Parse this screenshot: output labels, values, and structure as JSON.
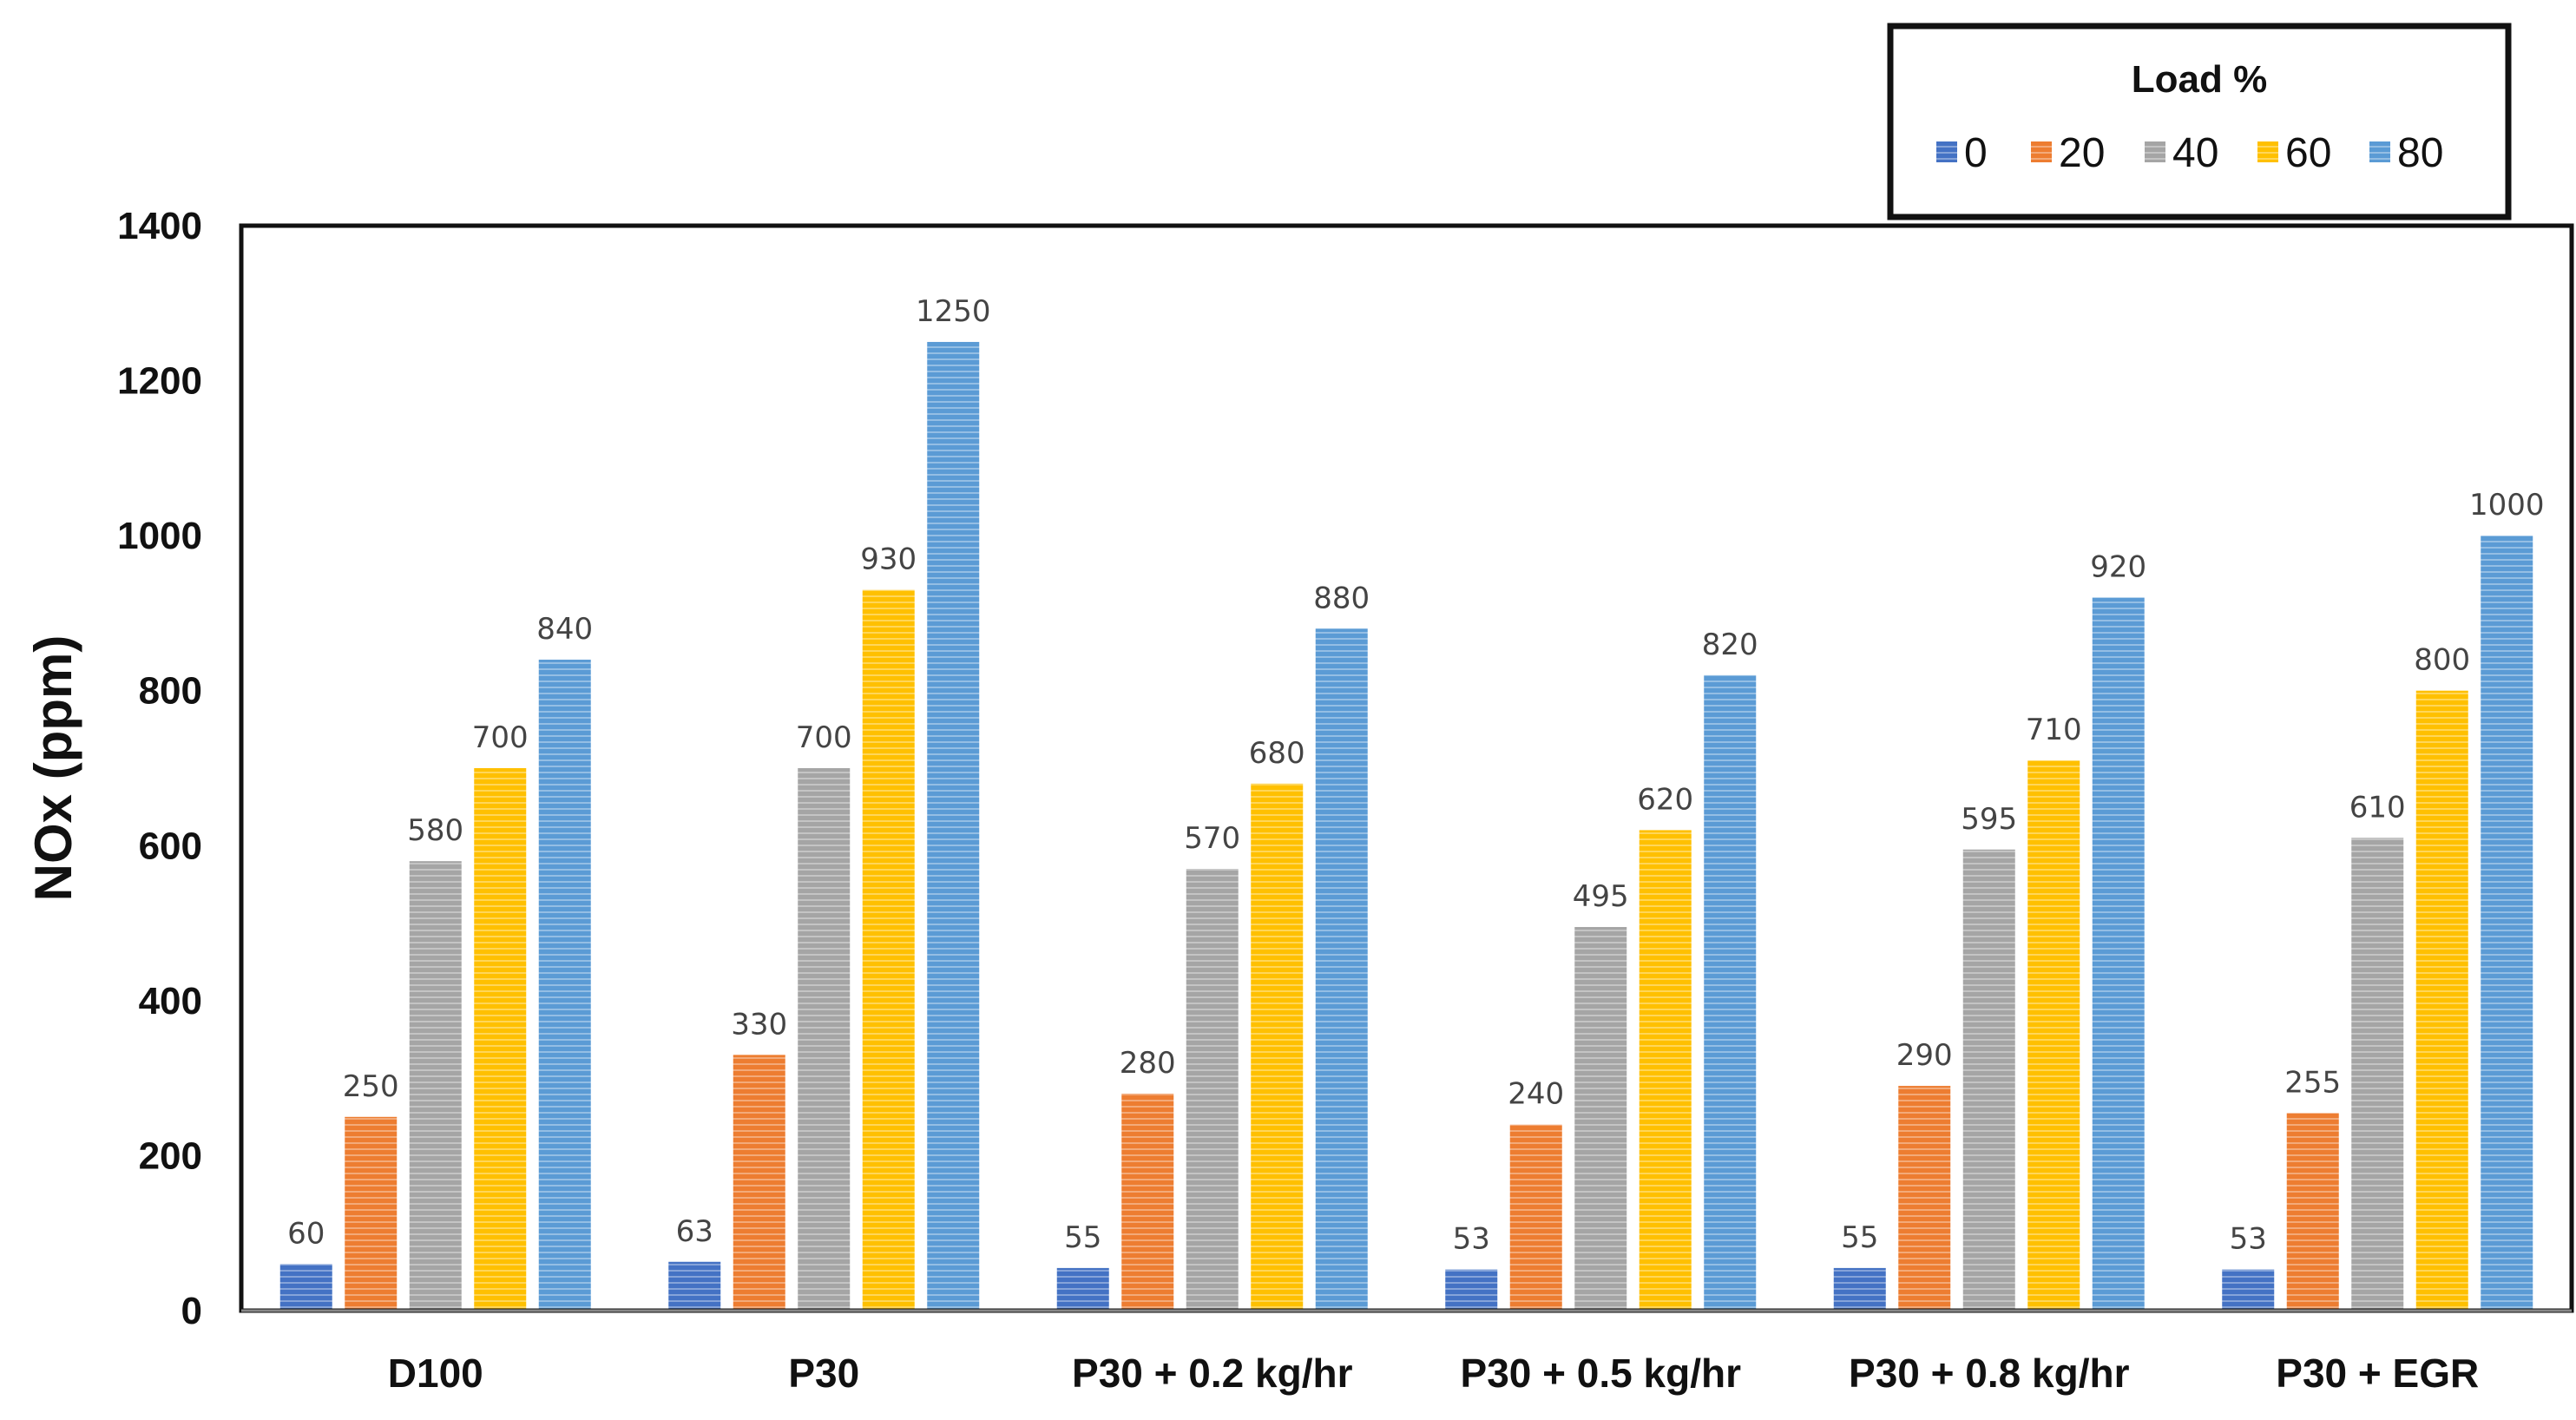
{
  "chart_data": {
    "type": "bar",
    "title": "",
    "xlabel": "",
    "ylabel": "NOx (ppm)",
    "ylim": [
      0,
      1400
    ],
    "yticks": [
      0,
      200,
      400,
      600,
      800,
      1000,
      1200,
      1400
    ],
    "grid": false,
    "legend": {
      "title": "Load %",
      "position": "top-right"
    },
    "categories": [
      "D100",
      "P30",
      "P30 + 0.2 kg/hr",
      "P30 + 0.5 kg/hr",
      "P30 + 0.8 kg/hr",
      "P30 + EGR"
    ],
    "series": [
      {
        "name": "0",
        "color": "#4472C4",
        "values": [
          60,
          63,
          55,
          53,
          55,
          53
        ]
      },
      {
        "name": "20",
        "color": "#ED7D31",
        "values": [
          250,
          330,
          280,
          240,
          290,
          255
        ]
      },
      {
        "name": "40",
        "color": "#A5A5A5",
        "values": [
          580,
          700,
          570,
          495,
          595,
          610
        ]
      },
      {
        "name": "60",
        "color": "#FFC000",
        "values": [
          700,
          930,
          680,
          620,
          710,
          800
        ]
      },
      {
        "name": "80",
        "color": "#5B9BD5",
        "values": [
          840,
          1250,
          880,
          820,
          920,
          1000
        ]
      }
    ]
  }
}
